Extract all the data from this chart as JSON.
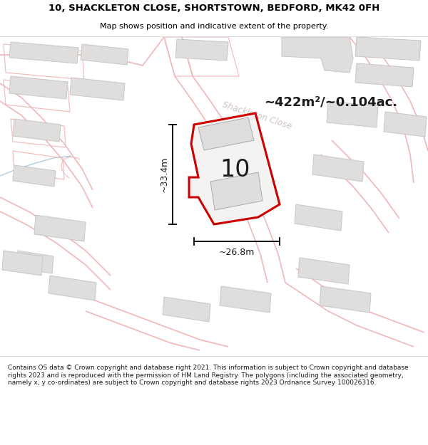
{
  "title_line1": "10, SHACKLETON CLOSE, SHORTSTOWN, BEDFORD, MK42 0FH",
  "title_line2": "Map shows position and indicative extent of the property.",
  "area_text": "~422m²/~0.104ac.",
  "label_number": "10",
  "dim_height": "~33.4m",
  "dim_width": "~26.8m",
  "street_label": "Shackleton Close",
  "footer_text": "Contains OS data © Crown copyright and database right 2021. This information is subject to Crown copyright and database rights 2023 and is reproduced with the permission of HM Land Registry. The polygons (including the associated geometry, namely x, y co-ordinates) are subject to Crown copyright and database rights 2023 Ordnance Survey 100026316.",
  "map_bg": "#f5f3f1",
  "plot_outline_color": "#cc0000",
  "building_fill": "#e0dedd",
  "building_outline": "#c8c6c4",
  "plot_fill": "#f5f3f1",
  "road_line_color": "#f0b8b8",
  "road_line_color2": "#b0ccdd",
  "title_bg": "#ffffff",
  "footer_bg": "#ffffff",
  "street_label_color": "#c8b8b8"
}
